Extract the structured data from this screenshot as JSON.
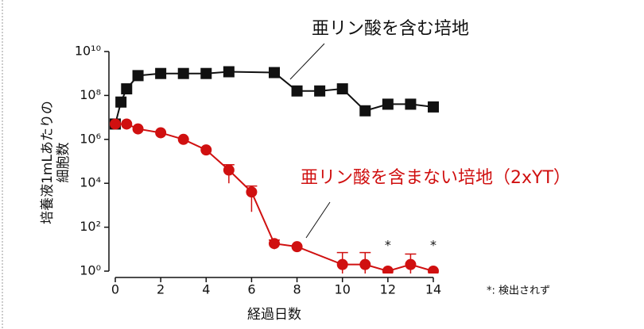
{
  "chart_data": {
    "type": "line",
    "y_label": [
      "培養液1mLあたりの",
      "細胞数"
    ],
    "x_label": "経過日数",
    "xlim": [
      0,
      14
    ],
    "xticks": [
      0,
      2,
      4,
      6,
      8,
      10,
      12,
      14
    ],
    "ylim": [
      1,
      10000000000
    ],
    "log_y": true,
    "yticks": [
      {
        "value": 1,
        "label": "10⁰"
      },
      {
        "value": 100,
        "label": "10²"
      },
      {
        "value": 10000,
        "label": "10⁴"
      },
      {
        "value": 1000000,
        "label": "10⁶"
      },
      {
        "value": 100000000,
        "label": "10⁸"
      },
      {
        "value": 10000000000,
        "label": "10¹⁰"
      }
    ],
    "series": [
      {
        "name": "亜リン酸を含む培地",
        "color": "#111111",
        "marker": "square",
        "x": [
          0,
          0.25,
          0.5,
          1,
          2,
          3,
          4,
          5,
          7,
          8,
          9,
          10,
          11,
          12,
          13,
          14
        ],
        "values": [
          5000000,
          50000000,
          200000000,
          800000000,
          1000000000,
          1000000000,
          1000000000,
          1200000000,
          1100000000,
          160000000,
          160000000,
          200000000,
          20000000,
          40000000,
          40000000,
          30000000
        ]
      },
      {
        "name": "亜リン酸を含まない培地（2xYT）",
        "color": "#d01010",
        "marker": "circle",
        "x": [
          0,
          0.5,
          1,
          2,
          3,
          4,
          5,
          6,
          7,
          8,
          10,
          11,
          12,
          13,
          14
        ],
        "values": [
          5000000,
          5000000,
          3000000,
          2000000,
          1000000,
          330000,
          40000,
          4000,
          18,
          13,
          2,
          2,
          1,
          2,
          1
        ],
        "errors": [
          null,
          null,
          null,
          null,
          null,
          null,
          30000,
          3500,
          8,
          null,
          5,
          5,
          null,
          4,
          null
        ]
      }
    ],
    "annotations": [
      {
        "text": "*",
        "x": 12
      },
      {
        "text": "*",
        "x": 14
      }
    ],
    "note": "*: 検出されず"
  }
}
